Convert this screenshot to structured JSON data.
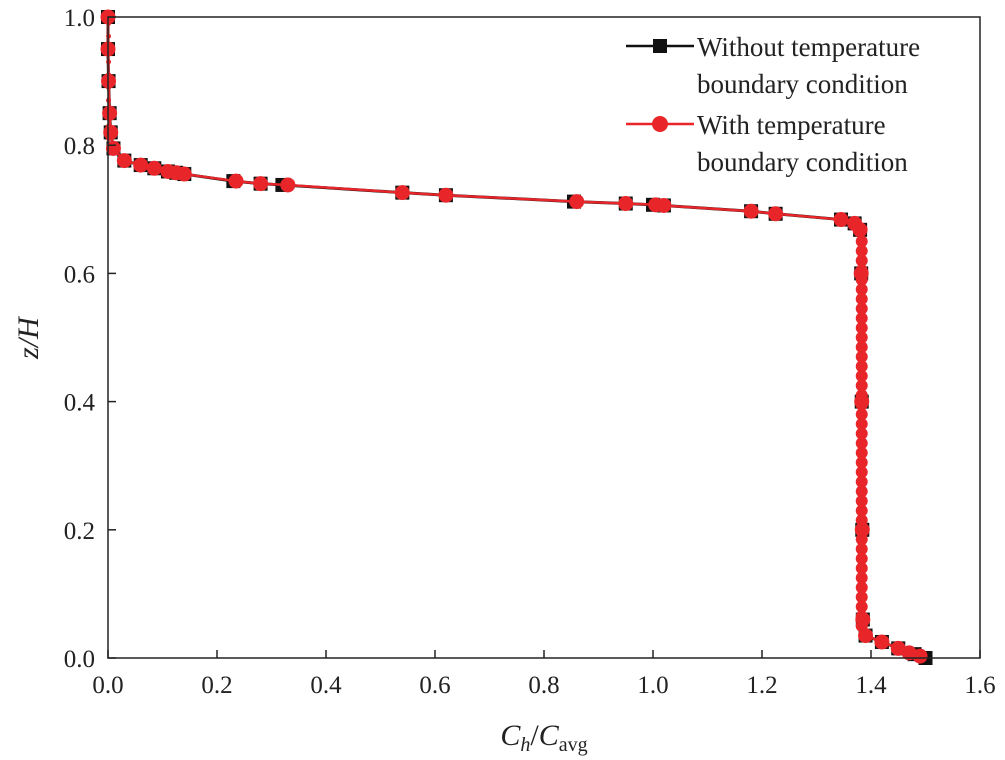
{
  "chart_data": {
    "type": "line",
    "title": "",
    "xlabel": {
      "main": "C",
      "sub1": "h",
      "slash": "/",
      "main2": "C",
      "sub2": "avg"
    },
    "ylabel": {
      "main": "z",
      "rest": "/H"
    },
    "xlim": [
      0.0,
      1.6
    ],
    "ylim": [
      0.0,
      1.0
    ],
    "x_ticks": [
      "0.0",
      "0.2",
      "0.4",
      "0.6",
      "0.8",
      "1.0",
      "1.2",
      "1.4",
      "1.6"
    ],
    "y_ticks": [
      "0.0",
      "0.2",
      "0.4",
      "0.6",
      "0.8",
      "1.0"
    ],
    "grid": false,
    "legend_position": "top-right",
    "series": [
      {
        "name_line1": "Without temperature",
        "name_line2": "boundary condition",
        "color": "#111111",
        "marker": "square",
        "points": [
          [
            0.0,
            1.0
          ],
          [
            0.0,
            0.95
          ],
          [
            0.001,
            0.9
          ],
          [
            0.003,
            0.85
          ],
          [
            0.005,
            0.82
          ],
          [
            0.01,
            0.795
          ],
          [
            0.03,
            0.776
          ],
          [
            0.06,
            0.769
          ],
          [
            0.085,
            0.764
          ],
          [
            0.11,
            0.759
          ],
          [
            0.125,
            0.757
          ],
          [
            0.14,
            0.755
          ],
          [
            0.23,
            0.744
          ],
          [
            0.28,
            0.74
          ],
          [
            0.32,
            0.738
          ],
          [
            0.54,
            0.726
          ],
          [
            0.62,
            0.722
          ],
          [
            0.855,
            0.712
          ],
          [
            0.95,
            0.709
          ],
          [
            1.0,
            0.707
          ],
          [
            1.02,
            0.706
          ],
          [
            1.18,
            0.697
          ],
          [
            1.225,
            0.693
          ],
          [
            1.345,
            0.684
          ],
          [
            1.37,
            0.678
          ],
          [
            1.38,
            0.668
          ],
          [
            1.382,
            0.6
          ],
          [
            1.383,
            0.4
          ],
          [
            1.384,
            0.2
          ],
          [
            1.385,
            0.06
          ],
          [
            1.39,
            0.035
          ],
          [
            1.42,
            0.025
          ],
          [
            1.45,
            0.015
          ],
          [
            1.48,
            0.006
          ],
          [
            1.5,
            0.0
          ]
        ]
      },
      {
        "name_line1": "With temperature",
        "name_line2": "boundary condition",
        "color": "#e8262a",
        "marker": "circle",
        "points": [
          [
            0.0,
            1.0
          ],
          [
            0.0,
            0.95
          ],
          [
            0.001,
            0.9
          ],
          [
            0.003,
            0.85
          ],
          [
            0.005,
            0.82
          ],
          [
            0.01,
            0.795
          ],
          [
            0.03,
            0.776
          ],
          [
            0.06,
            0.769
          ],
          [
            0.085,
            0.764
          ],
          [
            0.11,
            0.759
          ],
          [
            0.125,
            0.757
          ],
          [
            0.14,
            0.755
          ],
          [
            0.235,
            0.744
          ],
          [
            0.28,
            0.74
          ],
          [
            0.33,
            0.738
          ],
          [
            0.54,
            0.726
          ],
          [
            0.62,
            0.722
          ],
          [
            0.86,
            0.712
          ],
          [
            0.95,
            0.709
          ],
          [
            1.005,
            0.707
          ],
          [
            1.02,
            0.706
          ],
          [
            1.18,
            0.697
          ],
          [
            1.225,
            0.693
          ],
          [
            1.345,
            0.684
          ],
          [
            1.37,
            0.678
          ],
          [
            1.38,
            0.668
          ],
          [
            1.382,
            0.6
          ],
          [
            1.383,
            0.4
          ],
          [
            1.384,
            0.2
          ],
          [
            1.385,
            0.06
          ],
          [
            1.39,
            0.035
          ],
          [
            1.42,
            0.025
          ],
          [
            1.45,
            0.015
          ],
          [
            1.47,
            0.008
          ],
          [
            1.49,
            0.003
          ]
        ]
      }
    ]
  }
}
